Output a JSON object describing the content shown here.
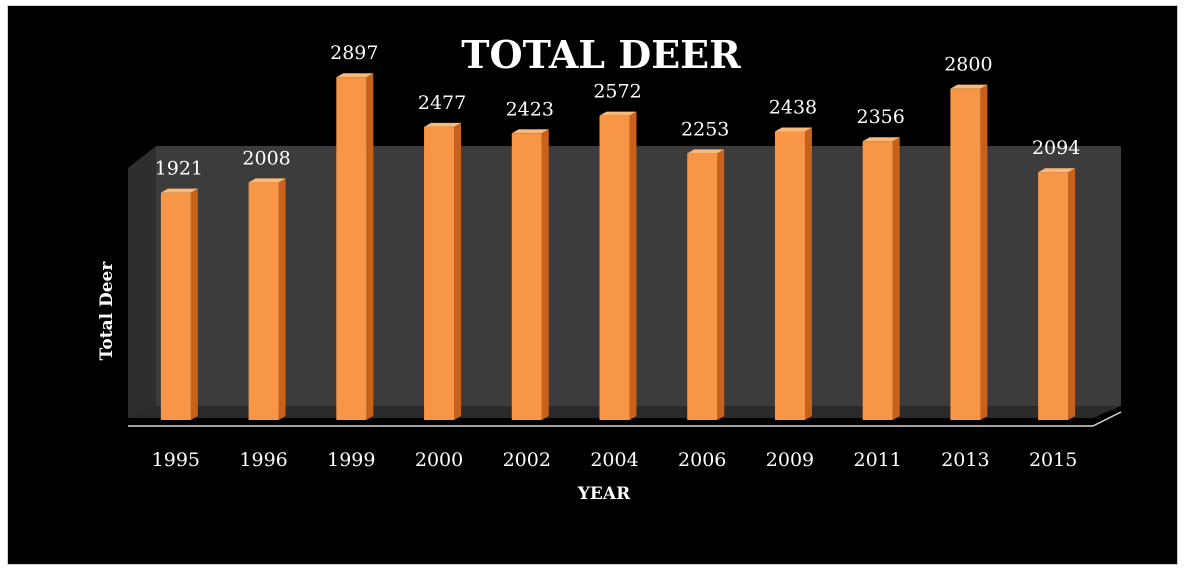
{
  "chart_data": {
    "type": "bar",
    "title": "TOTAL DEER",
    "xlabel": "YEAR",
    "ylabel": "Total Deer",
    "categories": [
      "1995",
      "1996",
      "1999",
      "2000",
      "2002",
      "2004",
      "2006",
      "2009",
      "2011",
      "2013",
      "2015"
    ],
    "values": [
      1921,
      2008,
      2897,
      2477,
      2423,
      2572,
      2253,
      2438,
      2356,
      2800,
      2094
    ],
    "ylim": [
      0,
      3000
    ],
    "grid": false,
    "legend": "none",
    "style": "3d-column",
    "colors": {
      "bar_front": "#f79646",
      "bar_side": "#c8621a",
      "bar_top": "#fbb878",
      "back_wall": "#3c3c3c",
      "floor": "#2a2a2a",
      "background": "#000000",
      "text": "#ffffff"
    }
  }
}
